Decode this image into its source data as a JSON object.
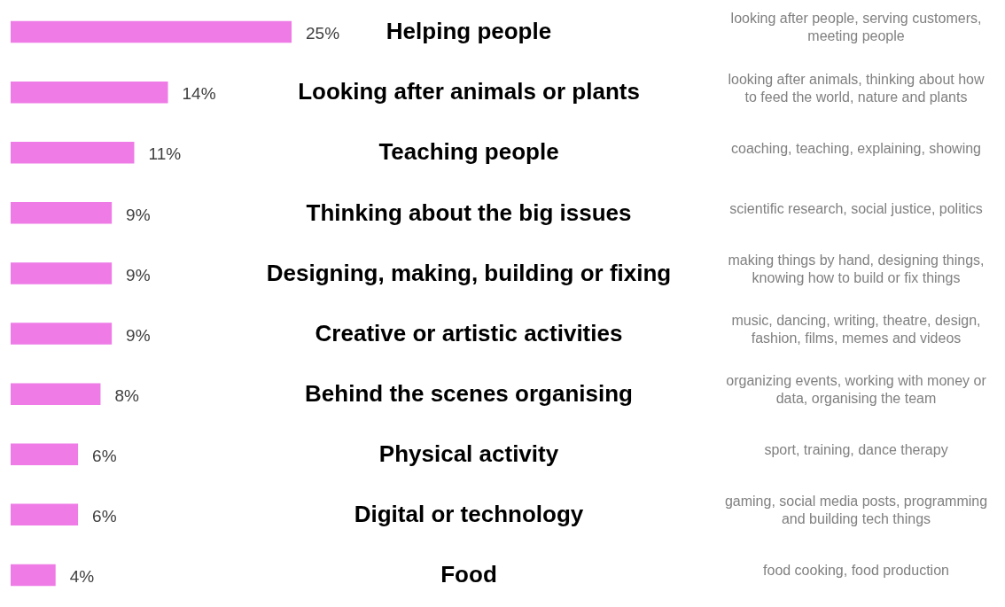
{
  "chart_data": {
    "type": "bar",
    "orientation": "horizontal",
    "data_labels": true,
    "tick_labels": false,
    "color": "#ee7be6",
    "categories": [
      "Helping people",
      "Looking after animals or plants",
      "Teaching people",
      "Thinking about the big issues",
      "Designing, making, building or fixing",
      "Creative or artistic activities",
      "Behind the scenes organising",
      "Physical activity",
      "Digital or technology",
      "Food"
    ],
    "values": [
      25,
      14,
      11,
      9,
      9,
      9,
      8,
      6,
      6,
      4
    ],
    "value_labels": [
      "25%",
      "14%",
      "11%",
      "9%",
      "9%",
      "9%",
      "8%",
      "6%",
      "6%",
      "4%"
    ],
    "annotations": [
      "looking after people, serving customers, meeting people",
      "looking after animals, thinking about how to feed the world, nature and plants",
      "coaching, teaching, explaining, showing",
      "scientific research, social justice, politics",
      "making things by hand, designing things, knowing how to build or fix things",
      "music, dancing, writing, theatre, design, fashion, films, memes and videos",
      "organizing events, working with money or data, organising the team",
      "sport, training, dance therapy",
      "gaming, social media posts, programming and building tech things",
      "food cooking, food production"
    ]
  }
}
